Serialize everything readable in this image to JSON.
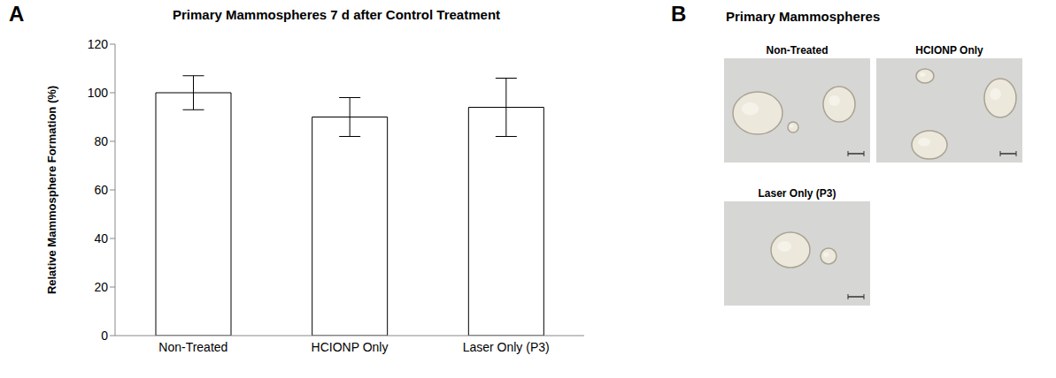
{
  "chart_data": {
    "type": "bar",
    "panel_label": "A",
    "title": "Primary Mammospheres 7 d after Control Treatment",
    "y_label": "Relative Mammosphere Formation (%)",
    "categories": [
      "Non-Treated",
      "HCIONP Only",
      "Laser Only (P3)"
    ],
    "values": [
      100,
      90,
      94
    ],
    "errors": [
      7,
      8,
      12
    ],
    "color": "#ffffff",
    "ylim": [
      0,
      120
    ],
    "yticks": [
      0,
      20,
      40,
      60,
      80,
      100,
      120
    ],
    "grid": false
  },
  "panel_b": {
    "panel_label": "B",
    "title": "Primary Mammospheres",
    "images": [
      {
        "label": "Non-Treated"
      },
      {
        "label": "HCIONP Only"
      },
      {
        "label": "Laser Only (P3)"
      }
    ]
  }
}
